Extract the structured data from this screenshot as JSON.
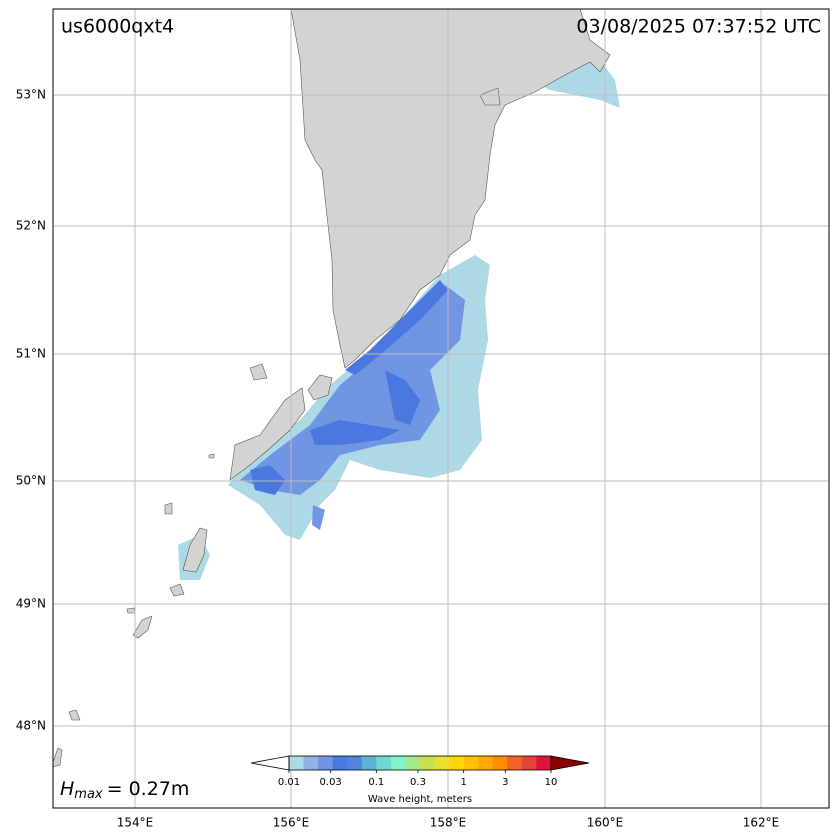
{
  "map": {
    "title": "us6000qxt4",
    "timestamp": "03/08/2025 07:37:52 UTC",
    "lat_labels": [
      "53°N",
      "52°N",
      "51°N",
      "50°N",
      "49°N",
      "48°N"
    ],
    "lon_labels": [
      "154°E",
      "156°E",
      "158°E",
      "160°E",
      "162°E"
    ],
    "hmax": {
      "symbol": "H",
      "subscript": "max",
      "text": "= 0.27m"
    },
    "colorbar": {
      "label": "Wave height, meters",
      "ticks": [
        0.01,
        0.03,
        0.1,
        0.3,
        1,
        3,
        10
      ],
      "colors": [
        "#add8e6",
        "#8fb4e3",
        "#6f95e3",
        "#4a78e0",
        "#4f86dc",
        "#5fb0d8",
        "#6fd8d0",
        "#80f4c4",
        "#a4e88c",
        "#c8e050",
        "#e6e032",
        "#ffd700",
        "#ffc200",
        "#ffa800",
        "#ff8c00",
        "#f0622a",
        "#e04434",
        "#dc143c"
      ],
      "under_color": "#ffffff",
      "over_color": "#8b0000"
    }
  }
}
